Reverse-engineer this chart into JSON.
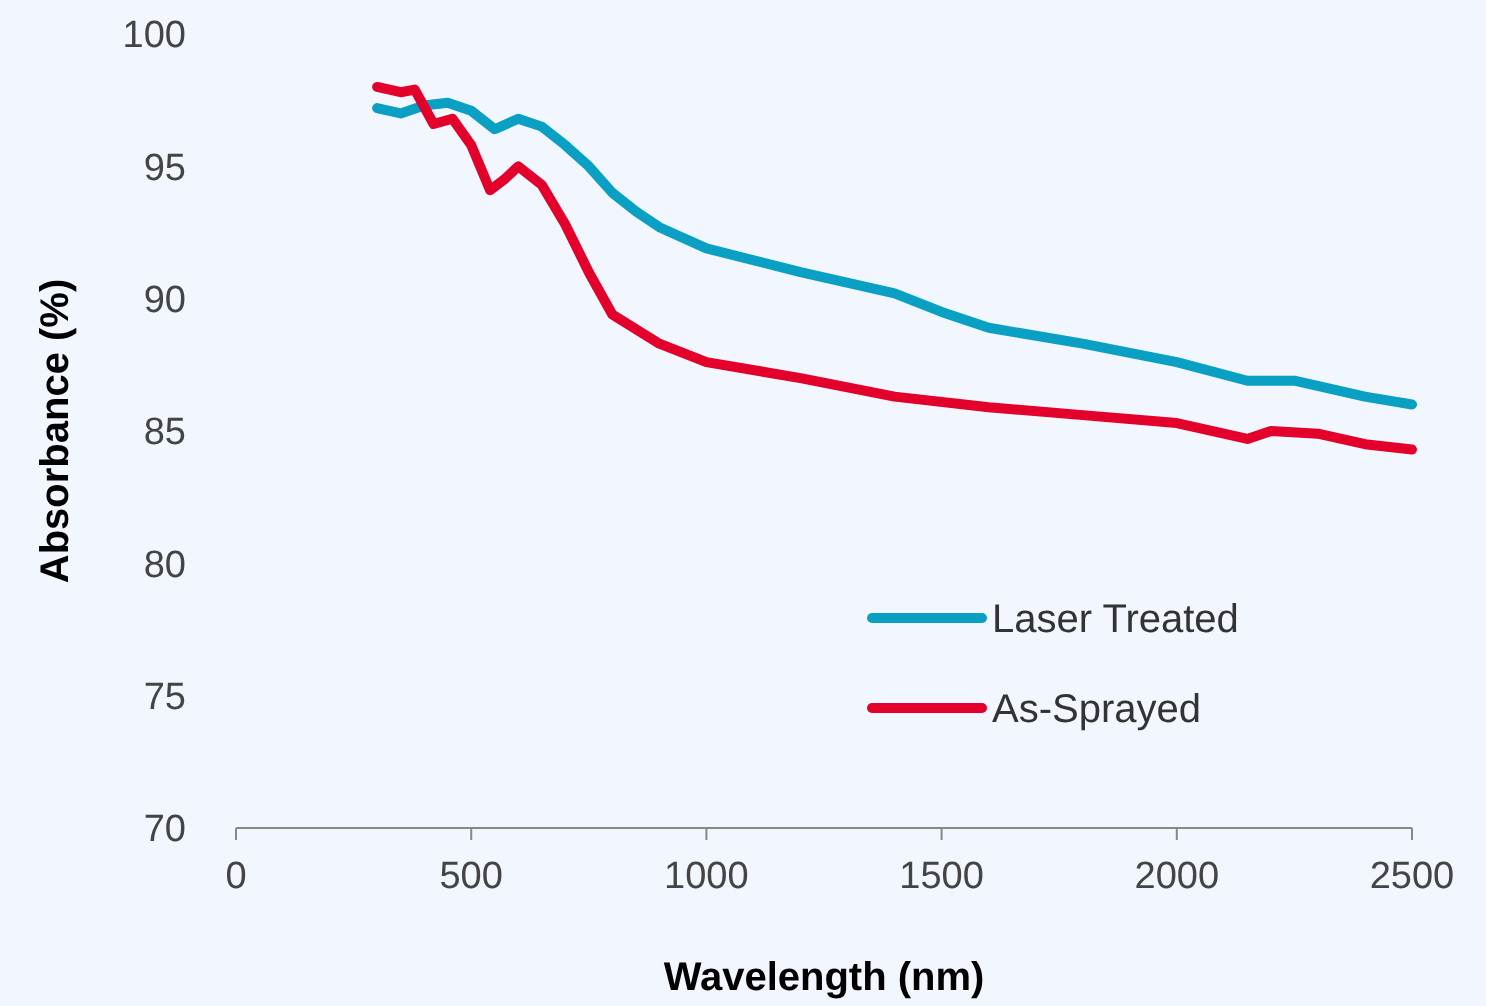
{
  "chart_data": {
    "type": "line",
    "xlabel": "Wavelength (nm)",
    "ylabel": "Absorbance (%)",
    "xlim": [
      0,
      2500
    ],
    "xticks": [
      0,
      500,
      1000,
      1500,
      2000,
      2500
    ],
    "ylim": [
      70,
      100
    ],
    "yticks": [
      70,
      75,
      80,
      85,
      90,
      95,
      100
    ],
    "grid": false,
    "legend": "bottom right",
    "marker": "none",
    "line_style": "solid",
    "series": [
      {
        "name": "Laser Treated",
        "color": "#0aa0c4",
        "x": [
          300,
          350,
          400,
          450,
          500,
          550,
          600,
          650,
          700,
          750,
          800,
          850,
          900,
          1000,
          1200,
          1400,
          1500,
          1600,
          1800,
          2000,
          2150,
          2250,
          2400,
          2500
        ],
        "values": [
          97.2,
          97.0,
          97.3,
          97.4,
          97.1,
          96.4,
          96.8,
          96.5,
          95.8,
          95.0,
          94.0,
          93.3,
          92.7,
          91.9,
          91.0,
          90.2,
          89.5,
          88.9,
          88.3,
          87.6,
          86.9,
          86.9,
          86.3,
          86.0
        ]
      },
      {
        "name": "As-Sprayed",
        "color": "#e3002a",
        "x": [
          300,
          350,
          380,
          420,
          460,
          500,
          540,
          570,
          600,
          650,
          700,
          750,
          800,
          900,
          1000,
          1200,
          1400,
          1600,
          1800,
          2000,
          2150,
          2200,
          2300,
          2400,
          2500
        ],
        "values": [
          98.0,
          97.8,
          97.9,
          96.6,
          96.8,
          95.8,
          94.1,
          94.5,
          95.0,
          94.3,
          92.8,
          91.0,
          89.4,
          88.3,
          87.6,
          87.0,
          86.3,
          85.9,
          85.6,
          85.3,
          84.7,
          85.0,
          84.9,
          84.5,
          84.3
        ]
      }
    ]
  }
}
